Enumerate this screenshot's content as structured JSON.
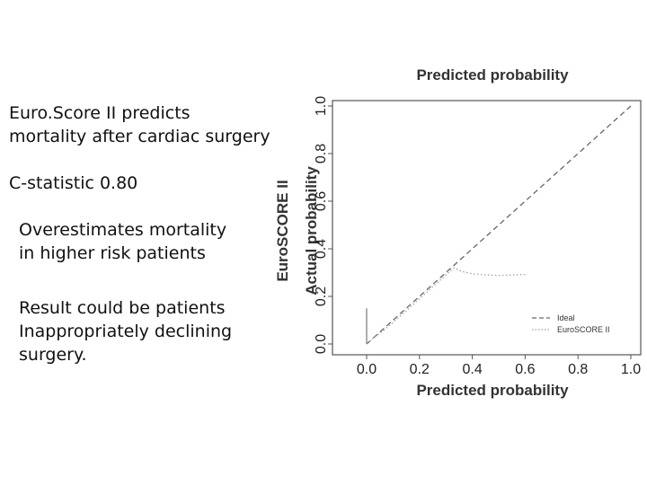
{
  "slide": {
    "point1": "Euro.Score II predicts\n mortality after cardiac surgery",
    "point2": "C-statistic 0.80",
    "point3": "Overestimates mortality\nin higher risk patients",
    "point4": "Result could be patients\nInappropriately declining\nsurgery."
  },
  "chart_data": {
    "type": "line",
    "top_title": "Predicted probability",
    "xlabel": "Predicted probability",
    "ylabel": "Actual probability",
    "ylabel_outer": "EuroSCORE II",
    "xlim": [
      0,
      1
    ],
    "ylim": [
      0,
      1
    ],
    "xticks": [
      "0.0",
      "0.2",
      "0.4",
      "0.6",
      "0.8",
      "1.0"
    ],
    "yticks": [
      "0.0",
      "0.2",
      "0.4",
      "0.6",
      "0.8",
      "1.0"
    ],
    "legend_position": "bottom-right",
    "series": [
      {
        "name": "Ideal",
        "style": "dashed",
        "color": "#666666",
        "points": [
          [
            0,
            0
          ],
          [
            1,
            1
          ]
        ]
      },
      {
        "name": "EuroSCORE II",
        "style": "dotted",
        "color": "#b89a8a",
        "points": [
          [
            0.0,
            0.0
          ],
          [
            0.02,
            0.02
          ],
          [
            0.05,
            0.045
          ],
          [
            0.1,
            0.09
          ],
          [
            0.15,
            0.14
          ],
          [
            0.2,
            0.19
          ],
          [
            0.25,
            0.24
          ],
          [
            0.3,
            0.29
          ],
          [
            0.33,
            0.32
          ],
          [
            0.36,
            0.305
          ],
          [
            0.4,
            0.295
          ],
          [
            0.45,
            0.29
          ],
          [
            0.5,
            0.288
          ],
          [
            0.55,
            0.29
          ],
          [
            0.6,
            0.292
          ]
        ]
      }
    ]
  }
}
